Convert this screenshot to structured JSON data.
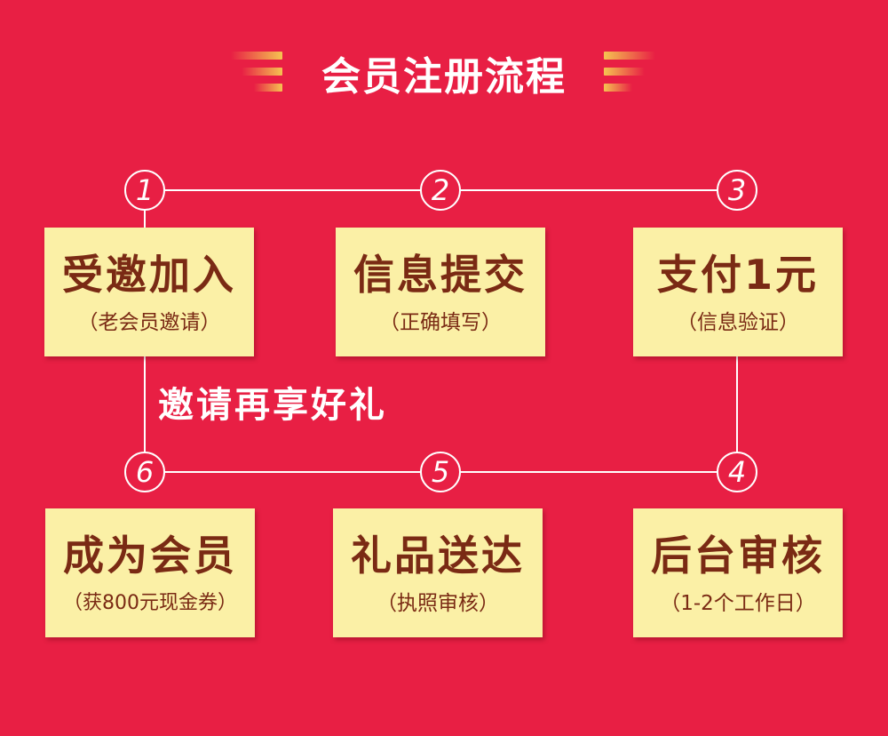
{
  "title": "会员注册流程",
  "steps": [
    {
      "number": "1",
      "label": "受邀加入",
      "sub": "（老会员邀请）"
    },
    {
      "number": "2",
      "label": "信息提交",
      "sub": "（正确填写）"
    },
    {
      "number": "3",
      "label": "支付1元",
      "sub": "（信息验证）"
    },
    {
      "number": "4",
      "label": "后台审核",
      "sub": "（1-2个工作日）"
    },
    {
      "number": "5",
      "label": "礼品送达",
      "sub": "（执照审核）"
    },
    {
      "number": "6",
      "label": "成为会员",
      "sub": "（获800元现金券）"
    }
  ],
  "note": "邀请再享好礼",
  "colors": {
    "background": "#e81f44",
    "box": "#fbf0a6",
    "box_text": "#7a2a14",
    "line": "#ffffff",
    "stripe_gold": "#f5c451"
  }
}
